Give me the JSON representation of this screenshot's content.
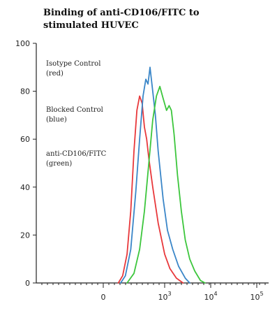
{
  "chart_data": {
    "type": "line",
    "title_lines": [
      "Binding of anti-CD106/FITC to",
      "stimulated HUVEC"
    ],
    "xlabel": "",
    "ylabel": "",
    "x_scale": "biexponential",
    "ylim": [
      0,
      100
    ],
    "y_ticks": [
      0,
      20,
      40,
      60,
      80,
      100
    ],
    "x_tick_labels": [
      {
        "value": 0,
        "label": "0"
      },
      {
        "value": 1000,
        "label": "10",
        "exp": "3"
      },
      {
        "value": 10000,
        "label": "10",
        "exp": "4"
      },
      {
        "value": 100000,
        "label": "10",
        "exp": "5"
      }
    ],
    "legend_placement": "top-left",
    "annotations": [
      {
        "lines": [
          "Isotype Control",
          "(red)"
        ]
      },
      {
        "lines": [
          "Blocked Control",
          "(blue)"
        ]
      },
      {
        "lines": [
          "anti-CD106/FITC",
          "(green)"
        ]
      }
    ],
    "series": [
      {
        "color": "#e8383b",
        "x": [
          60,
          100,
          150,
          200,
          250,
          300,
          350,
          400,
          450,
          500,
          550,
          650,
          800,
          1000,
          1300,
          1800,
          2500
        ],
        "y": [
          0,
          3,
          12,
          30,
          55,
          72,
          78,
          75,
          65,
          60,
          52,
          40,
          25,
          12,
          6,
          2,
          0
        ]
      },
      {
        "color": "#3a86c8",
        "x": [
          80,
          130,
          200,
          280,
          350,
          420,
          480,
          530,
          580,
          650,
          720,
          800,
          950,
          1150,
          1500,
          2000,
          2800,
          3500
        ],
        "y": [
          0,
          3,
          14,
          38,
          60,
          78,
          85,
          83,
          90,
          80,
          70,
          55,
          35,
          22,
          14,
          7,
          2,
          0
        ]
      },
      {
        "color": "#3cc63c",
        "x": [
          150,
          250,
          350,
          450,
          550,
          650,
          750,
          850,
          950,
          1100,
          1250,
          1400,
          1600,
          1900,
          2300,
          2800,
          3500,
          4500,
          6000,
          7500
        ],
        "y": [
          0,
          4,
          14,
          30,
          50,
          68,
          78,
          82,
          77,
          72,
          74,
          72,
          62,
          45,
          30,
          18,
          10,
          5,
          1,
          0
        ]
      }
    ]
  }
}
